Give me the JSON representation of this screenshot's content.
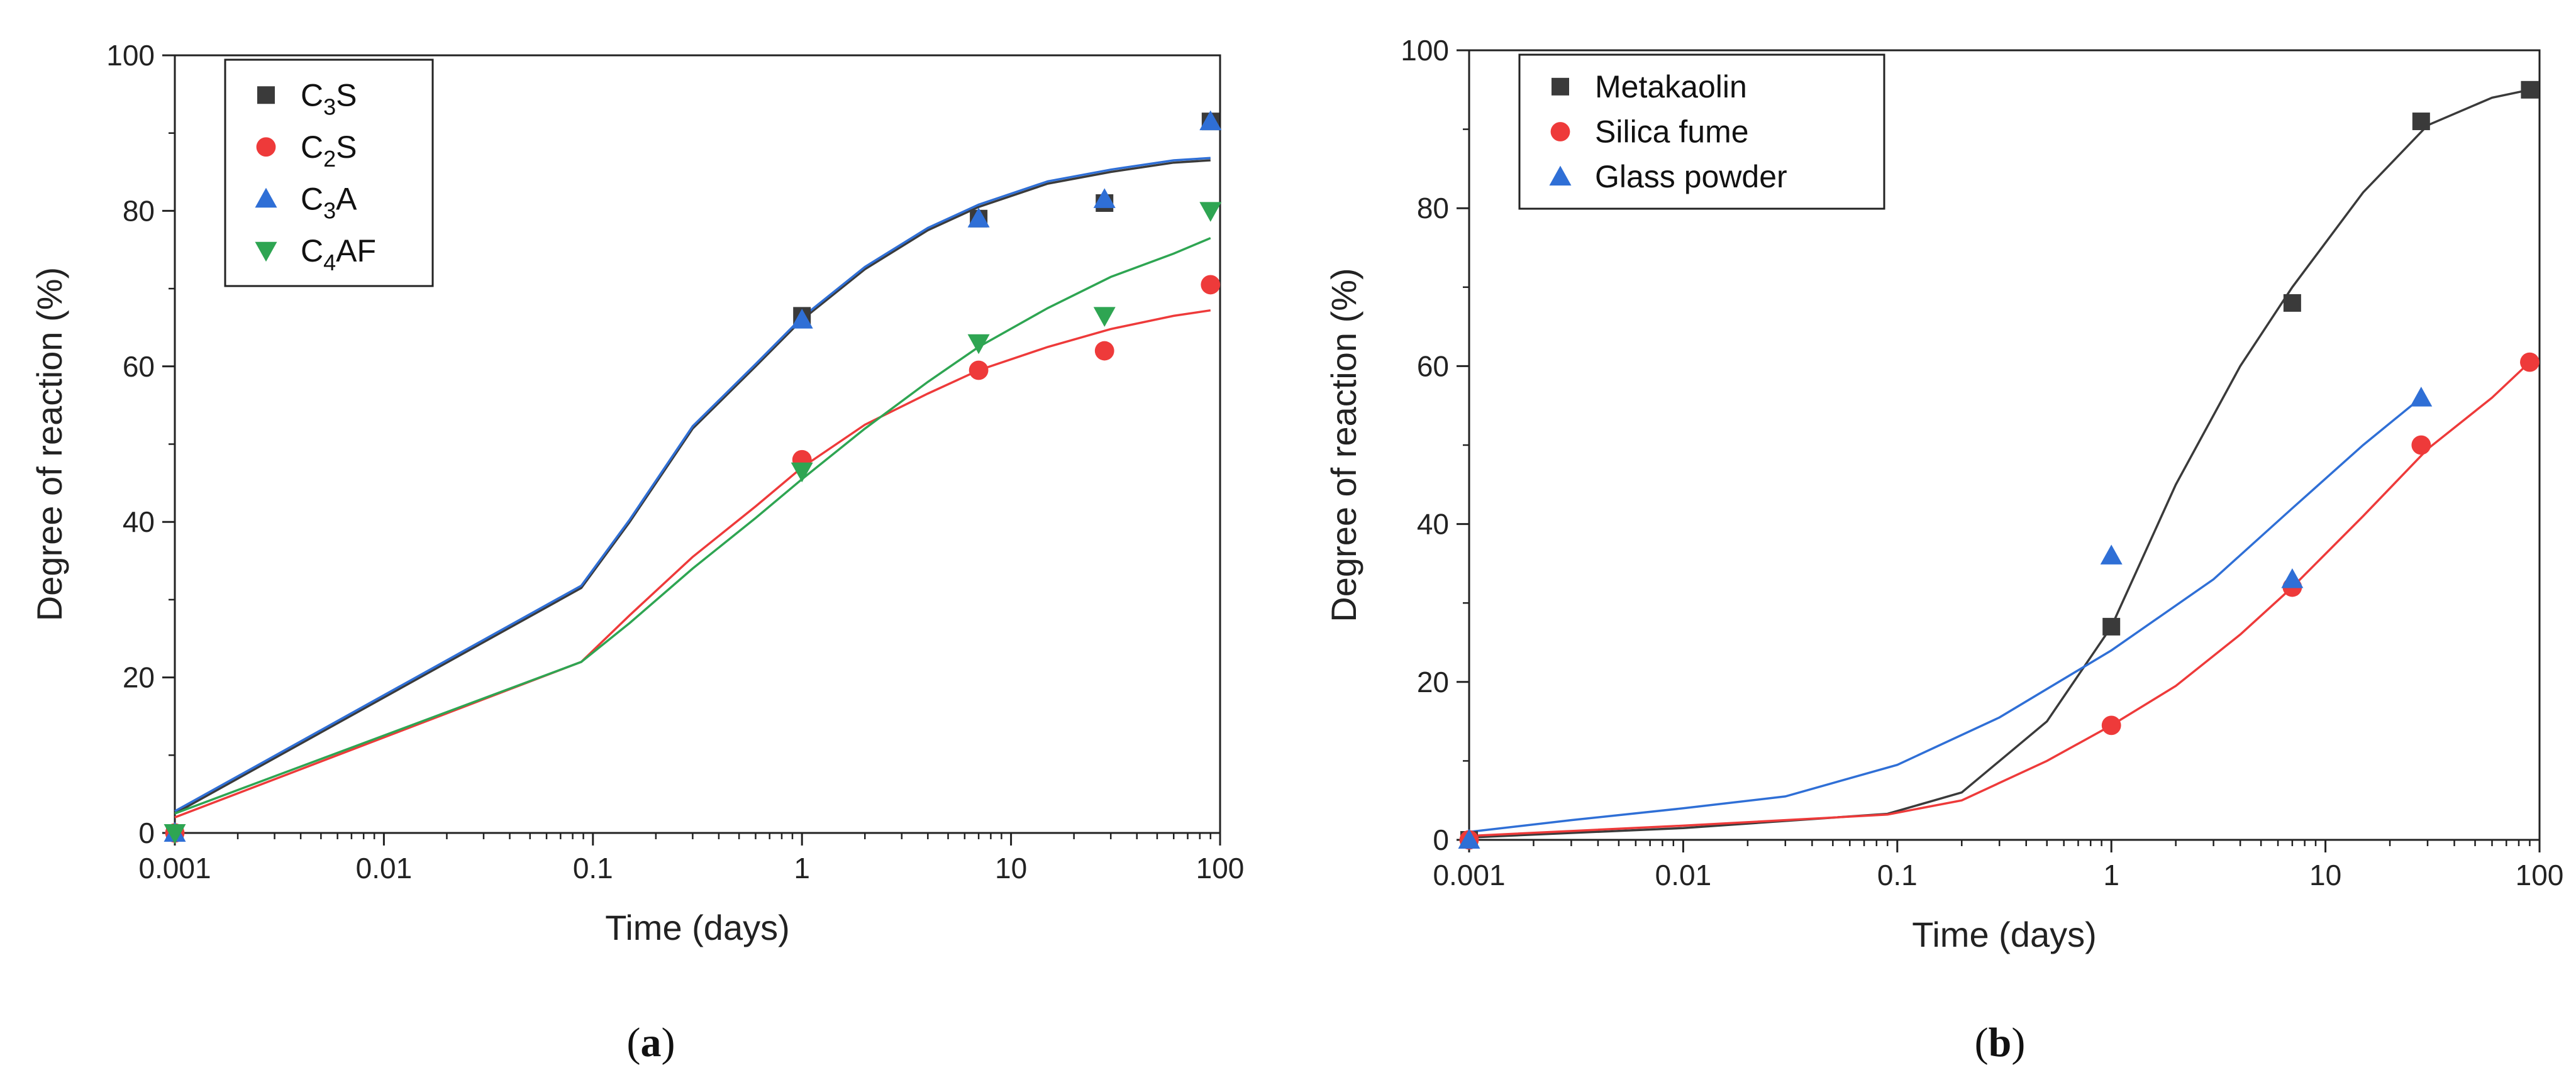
{
  "chart_data": [
    {
      "type": "scatter",
      "panel_label": "a",
      "xlabel": "Time (days)",
      "ylabel": "Degree of reaction (%)",
      "x_scale": "log",
      "xlim": [
        0.001,
        100
      ],
      "ylim": [
        0,
        100
      ],
      "x_ticks": [
        {
          "value": 0.001,
          "label": "0.001"
        },
        {
          "value": 0.01,
          "label": "0.01"
        },
        {
          "value": 0.1,
          "label": "0.1"
        },
        {
          "value": 1,
          "label": "1"
        },
        {
          "value": 10,
          "label": "10"
        },
        {
          "value": 100,
          "label": "100"
        }
      ],
      "y_ticks": [
        {
          "value": 0,
          "label": "0"
        },
        {
          "value": 20,
          "label": "20"
        },
        {
          "value": 40,
          "label": "40"
        },
        {
          "value": 60,
          "label": "60"
        },
        {
          "value": 80,
          "label": "80"
        },
        {
          "value": 100,
          "label": "100"
        }
      ],
      "legend_position": "top-left",
      "series": [
        {
          "name": "C3S",
          "label_main": "C",
          "label_sub": "3",
          "label_rest": "S",
          "marker": "square",
          "color": "#3a3a3a",
          "x": [
            0.001,
            1,
            7,
            28,
            90
          ],
          "y": [
            0,
            66.5,
            79,
            81,
            91.5
          ],
          "fit": {
            "x": [
              0.001,
              0.088,
              0.15,
              0.3,
              0.6,
              1,
              2,
              4,
              7,
              15,
              30,
              60,
              90
            ],
            "y": [
              2.5,
              31.5,
              40,
              52,
              60,
              66,
              72.5,
              77.5,
              80.5,
              83.5,
              85,
              86.2,
              86.5
            ]
          }
        },
        {
          "name": "C2S",
          "label_main": "C",
          "label_sub": "2",
          "label_rest": "S",
          "marker": "circle",
          "color": "#ee3a3a",
          "x": [
            0.001,
            1,
            7,
            28,
            90
          ],
          "y": [
            0,
            48,
            59.5,
            62,
            70.5
          ],
          "fit": {
            "x": [
              0.001,
              0.088,
              0.15,
              0.3,
              0.6,
              1,
              2,
              4,
              7,
              15,
              30,
              60,
              90
            ],
            "y": [
              2,
              22,
              28,
              35.5,
              42,
              47,
              52.5,
              56.5,
              59.5,
              62.5,
              64.8,
              66.5,
              67.2
            ]
          }
        },
        {
          "name": "C3A",
          "label_main": "C",
          "label_sub": "3",
          "label_rest": "A",
          "marker": "triangle-up",
          "color": "#2f6fd6",
          "x": [
            0.001,
            1,
            7,
            28,
            90
          ],
          "y": [
            0,
            66,
            79,
            81.5,
            91.5
          ],
          "fit": {
            "x": [
              0.001,
              0.088,
              0.15,
              0.3,
              0.6,
              1,
              2,
              4,
              7,
              15,
              30,
              60,
              90
            ],
            "y": [
              2.8,
              31.8,
              40.3,
              52.3,
              60.3,
              66.3,
              72.8,
              77.8,
              80.8,
              83.8,
              85.3,
              86.5,
              86.8
            ]
          }
        },
        {
          "name": "C4AF",
          "label_main": "C",
          "label_sub": "4",
          "label_rest": "AF",
          "marker": "triangle-down",
          "color": "#2ea552",
          "x": [
            0.001,
            1,
            7,
            28,
            90
          ],
          "y": [
            0,
            46.5,
            63,
            66.5,
            80
          ],
          "fit": {
            "x": [
              0.001,
              0.088,
              0.15,
              0.3,
              0.6,
              1,
              2,
              4,
              7,
              15,
              30,
              60,
              90
            ],
            "y": [
              2.5,
              22,
              27,
              34,
              40.5,
              45.5,
              52,
              58,
              62.5,
              67.5,
              71.5,
              74.5,
              76.5
            ]
          }
        }
      ]
    },
    {
      "type": "scatter",
      "panel_label": "b",
      "xlabel": "Time (days)",
      "ylabel": "Degree of reaction (%)",
      "x_scale": "log",
      "xlim": [
        0.001,
        100
      ],
      "ylim": [
        0,
        100
      ],
      "x_ticks": [
        {
          "value": 0.001,
          "label": "0.001"
        },
        {
          "value": 0.01,
          "label": "0.01"
        },
        {
          "value": 0.1,
          "label": "0.1"
        },
        {
          "value": 1,
          "label": "1"
        },
        {
          "value": 10,
          "label": "10"
        },
        {
          "value": 100,
          "label": "100"
        }
      ],
      "y_ticks": [
        {
          "value": 0,
          "label": "0"
        },
        {
          "value": 20,
          "label": "20"
        },
        {
          "value": 40,
          "label": "40"
        },
        {
          "value": 60,
          "label": "60"
        },
        {
          "value": 80,
          "label": "80"
        },
        {
          "value": 100,
          "label": "100"
        }
      ],
      "legend_position": "top-left",
      "series": [
        {
          "name": "Metakaolin",
          "label_main": "Metakaolin",
          "label_sub": "",
          "label_rest": "",
          "marker": "square",
          "color": "#3a3a3a",
          "x": [
            0.001,
            1,
            7,
            28,
            90
          ],
          "y": [
            0,
            27,
            68,
            91,
            95
          ],
          "fit": {
            "x": [
              0.001,
              0.01,
              0.09,
              0.2,
              0.5,
              1,
              2,
              4,
              7,
              15,
              30,
              60,
              90
            ],
            "y": [
              0.3,
              1.5,
              3.3,
              6,
              15,
              27,
              45,
              60,
              70,
              82,
              90.5,
              94,
              95
            ]
          }
        },
        {
          "name": "Silica fume",
          "label_main": "Silica fume",
          "label_sub": "",
          "label_rest": "",
          "marker": "circle",
          "color": "#ee3a3a",
          "x": [
            0.001,
            1,
            7,
            28,
            90
          ],
          "y": [
            0,
            14.5,
            32,
            50,
            60.5
          ],
          "fit": {
            "x": [
              0.001,
              0.01,
              0.09,
              0.2,
              0.5,
              1,
              2,
              4,
              7,
              15,
              30,
              60,
              90
            ],
            "y": [
              0.5,
              1.8,
              3.2,
              5,
              10,
              14.5,
              19.5,
              26,
              32,
              41,
              49.5,
              56,
              60.5
            ]
          }
        },
        {
          "name": "Glass powder",
          "label_main": "Glass powder",
          "label_sub": "",
          "label_rest": "",
          "marker": "triangle-up",
          "color": "#2f6fd6",
          "x": [
            0.001,
            1,
            7,
            28
          ],
          "y": [
            0,
            36,
            33,
            56
          ],
          "fit": {
            "x": [
              0.001,
              0.003,
              0.01,
              0.03,
              0.1,
              0.3,
              1,
              3,
              7,
              15,
              28
            ],
            "y": [
              1,
              2.5,
              4,
              5.5,
              9.5,
              15.5,
              24,
              33,
              42,
              50,
              56
            ]
          }
        }
      ]
    }
  ]
}
